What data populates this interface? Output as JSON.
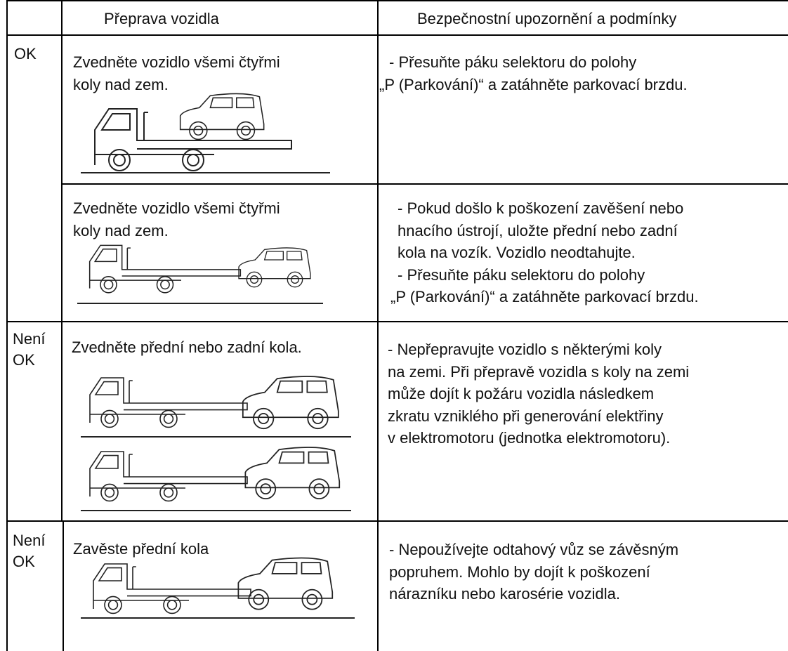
{
  "header": {
    "transport": "Přeprava vozidla",
    "notes": "Bezpečnostní upozornění a podmínky"
  },
  "rows": [
    {
      "status": [
        "OK"
      ],
      "transport": [
        "Zvedněte vozidlo všemi čtyřmi",
        "koly nad zem."
      ],
      "notes": [
        "- Přesuňte páku selektoru do polohy",
        "„P (Parkování)“ a zatáhněte parkovací brzdu."
      ]
    },
    {
      "transport": [
        "Zvedněte vozidlo všemi čtyřmi",
        "koly nad zem."
      ],
      "notes": [
        "-  Pokud došlo k poškození zavěšení nebo",
        "hnacího ústrojí, uložte přední nebo zadní",
        "kola na vozík. Vozidlo neodtahujte.",
        "-  Přesuňte páku selektoru do polohy",
        "„P (Parkování)“ a zatáhněte parkovací brzdu."
      ]
    },
    {
      "status": [
        "Není",
        "OK"
      ],
      "transport": [
        "Zvedněte přední nebo zadní kola."
      ],
      "notes": [
        "- Nepřepravujte vozidlo s některými koly",
        "na zemi. Při přepravě vozidla s koly na zemi",
        "může dojít k požáru vozidla následkem",
        "zkratu vzniklého při generování elektřiny",
        "v elektromotoru (jednotka elektromotoru)."
      ]
    },
    {
      "status": [
        "Není",
        "OK"
      ],
      "transport": [
        "Zavěste přední kola"
      ],
      "notes": [
        "- Nepoužívejte odtahový vůz se závěsným",
        "popruhem. Mohlo by dojít k poškození",
        "nárazníku nebo karosérie vozidla."
      ]
    }
  ]
}
